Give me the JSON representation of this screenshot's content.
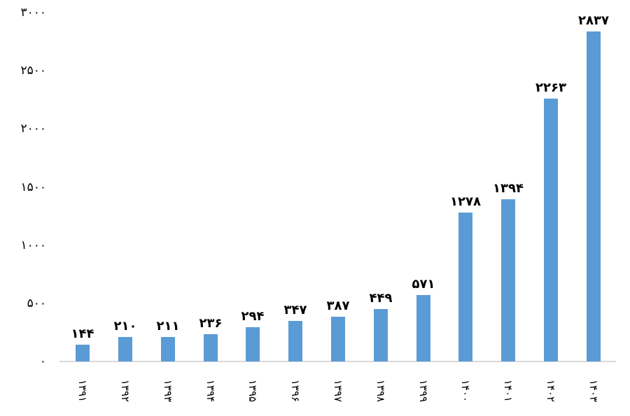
{
  "chart_data": {
    "type": "bar",
    "title": "",
    "xlabel": "",
    "ylabel": "",
    "number_system": "persian-eastern-arabic-indic-digits",
    "categories": [
      1391,
      1392,
      1393,
      1394,
      1395,
      1396,
      1397,
      1398,
      1399,
      1400,
      1401,
      1402,
      1403
    ],
    "categories_display": [
      "۱۳۹۱",
      "۱۳۹۲",
      "۱۳۹۳",
      "۱۳۹۴",
      "۱۳۹۵",
      "۱۳۹۶",
      "۱۳۹۷",
      "۱۳۹۸",
      "۱۳۹۹",
      "۱۴۰۰",
      "۱۴۰۱",
      "۱۴۰۲",
      "۱۴۰۳"
    ],
    "values": [
      144,
      210,
      211,
      236,
      294,
      347,
      387,
      449,
      571,
      1278,
      1394,
      2263,
      2837
    ],
    "value_labels_display": [
      "۱۴۴",
      "۲۱۰",
      "۲۱۱",
      "۲۳۶",
      "۲۹۴",
      "۳۴۷",
      "۳۸۷",
      "۴۴۹",
      "۵۷۱",
      "۱۲۷۸",
      "۱۳۹۴",
      "۲۲۶۳",
      "۲۸۳۷"
    ],
    "y_axis": {
      "min": 0,
      "max": 3000,
      "tick_step": 500,
      "ticks": [
        0,
        500,
        1000,
        1500,
        2000,
        2500,
        3000
      ],
      "ticks_display": [
        "۰",
        "۵۰۰",
        "۱۰۰۰",
        "۱۵۰۰",
        "۲۰۰۰",
        "۲۵۰۰",
        "۳۰۰۰"
      ]
    },
    "x_tick_rotation_deg": 90,
    "grid": false,
    "legend": false,
    "colors": {
      "bar": "#5b9bd5",
      "axis_line": "#d9d9d9",
      "text": "#000000",
      "background": "#ffffff"
    }
  }
}
